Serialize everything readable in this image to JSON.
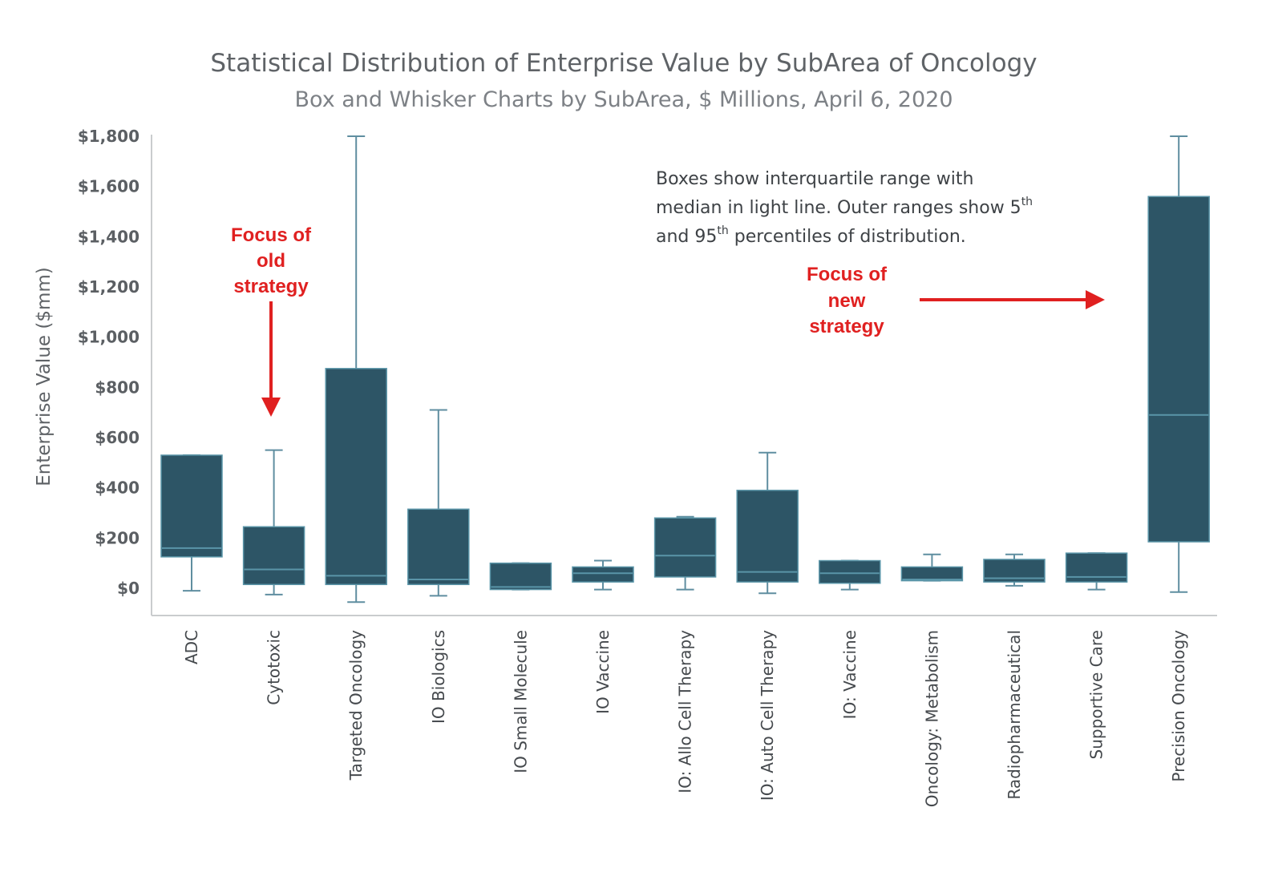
{
  "chart_data": {
    "type": "box",
    "title": "Statistical Distribution of Enterprise Value by SubArea of Oncology",
    "subtitle": "Box and Whisker Charts by SubArea, $ Millions, April 6, 2020",
    "ylabel": "Enterprise Value ($mm)",
    "xlabel": "",
    "ylim": [
      -100,
      1800
    ],
    "yticks": [
      0,
      200,
      400,
      600,
      800,
      1000,
      1200,
      1400,
      1600,
      1800
    ],
    "ytick_labels": [
      "$0",
      "$200",
      "$400",
      "$600",
      "$800",
      "$1,000",
      "$1,200",
      "$1,400",
      "$1,600",
      "$1,800"
    ],
    "grid": false,
    "box_color": "#2d5566",
    "median_color": "#5a95a8",
    "whisker_color": "#5f8ea0",
    "categories": [
      "ADC",
      "Cytotoxic",
      "Targeted Oncology",
      "IO Biologics",
      "IO Small Molecule",
      "IO Vaccine",
      "IO: Allo Cell Therapy",
      "IO: Auto Cell Therapy",
      "IO: Vaccine",
      "Oncology: Metabolism",
      "Radiopharmaceutical",
      "Supportive Care",
      "Precision Oncology"
    ],
    "boxes": [
      {
        "low": -10,
        "q1": 125,
        "median": 160,
        "q3": 530,
        "high": 530
      },
      {
        "low": -25,
        "q1": 15,
        "median": 75,
        "q3": 245,
        "high": 550
      },
      {
        "low": -55,
        "q1": 15,
        "median": 50,
        "q3": 875,
        "high": 1800
      },
      {
        "low": -30,
        "q1": 15,
        "median": 35,
        "q3": 315,
        "high": 710
      },
      {
        "low": -5,
        "q1": -5,
        "median": 5,
        "q3": 100,
        "high": 100
      },
      {
        "low": -5,
        "q1": 25,
        "median": 60,
        "q3": 85,
        "high": 110
      },
      {
        "low": -5,
        "q1": 45,
        "median": 130,
        "q3": 280,
        "high": 285
      },
      {
        "low": -20,
        "q1": 25,
        "median": 65,
        "q3": 390,
        "high": 540
      },
      {
        "low": -5,
        "q1": 20,
        "median": 60,
        "q3": 110,
        "high": 110
      },
      {
        "low": 30,
        "q1": 30,
        "median": 35,
        "q3": 85,
        "high": 135
      },
      {
        "low": 10,
        "q1": 25,
        "median": 40,
        "q3": 115,
        "high": 135
      },
      {
        "low": -5,
        "q1": 25,
        "median": 45,
        "q3": 140,
        "high": 140
      },
      {
        "low": -15,
        "q1": 185,
        "median": 690,
        "q3": 1560,
        "high": 1800
      }
    ],
    "note": {
      "line1": "Boxes show interquartile range with",
      "line2": "median in light line. Outer ranges show 5",
      "line2_sup": "th",
      "line3_pre": "and 95",
      "line3_sup": "th",
      "line3_post": " percentiles of distribution."
    },
    "annotations": {
      "old": [
        "Focus of",
        "old",
        "strategy"
      ],
      "new": [
        "Focus of",
        "new",
        "strategy"
      ],
      "arrow_color": "#e02020"
    }
  }
}
